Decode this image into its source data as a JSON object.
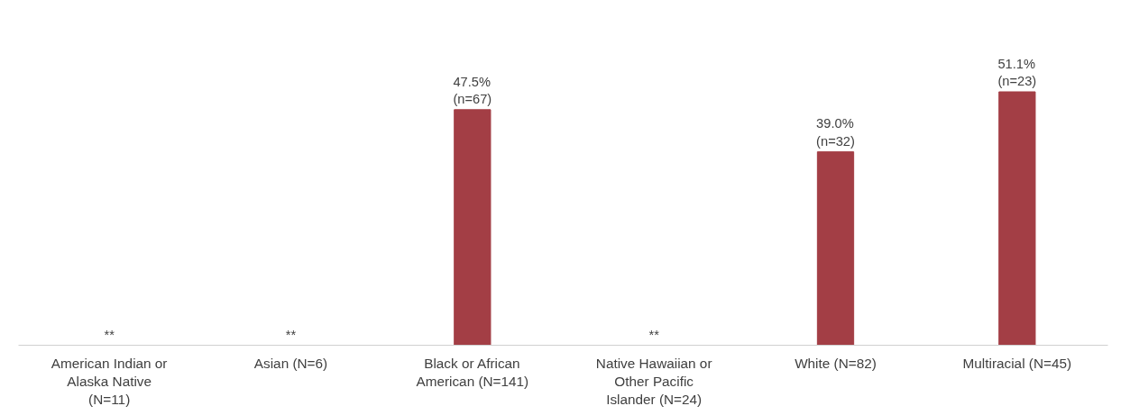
{
  "chart_data": {
    "type": "bar",
    "categories": [
      "American Indian or Alaska Native (N=11)",
      "Asian (N=6)",
      "Black or African American (N=141)",
      "Native Hawaiian or Other Pacific Islander (N=24)",
      "White (N=82)",
      "Multiracial (N=45)"
    ],
    "series": [
      {
        "color": "#a33e45",
        "values": [
          null,
          null,
          47.5,
          null,
          39.0,
          51.1
        ],
        "value_labels": [
          "**",
          "**",
          "47.5%\n(n=67)",
          "**",
          "39.0%\n(n=32)",
          "51.1%\n(n=23)"
        ]
      }
    ],
    "grid": false,
    "tick_labels": "x"
  }
}
